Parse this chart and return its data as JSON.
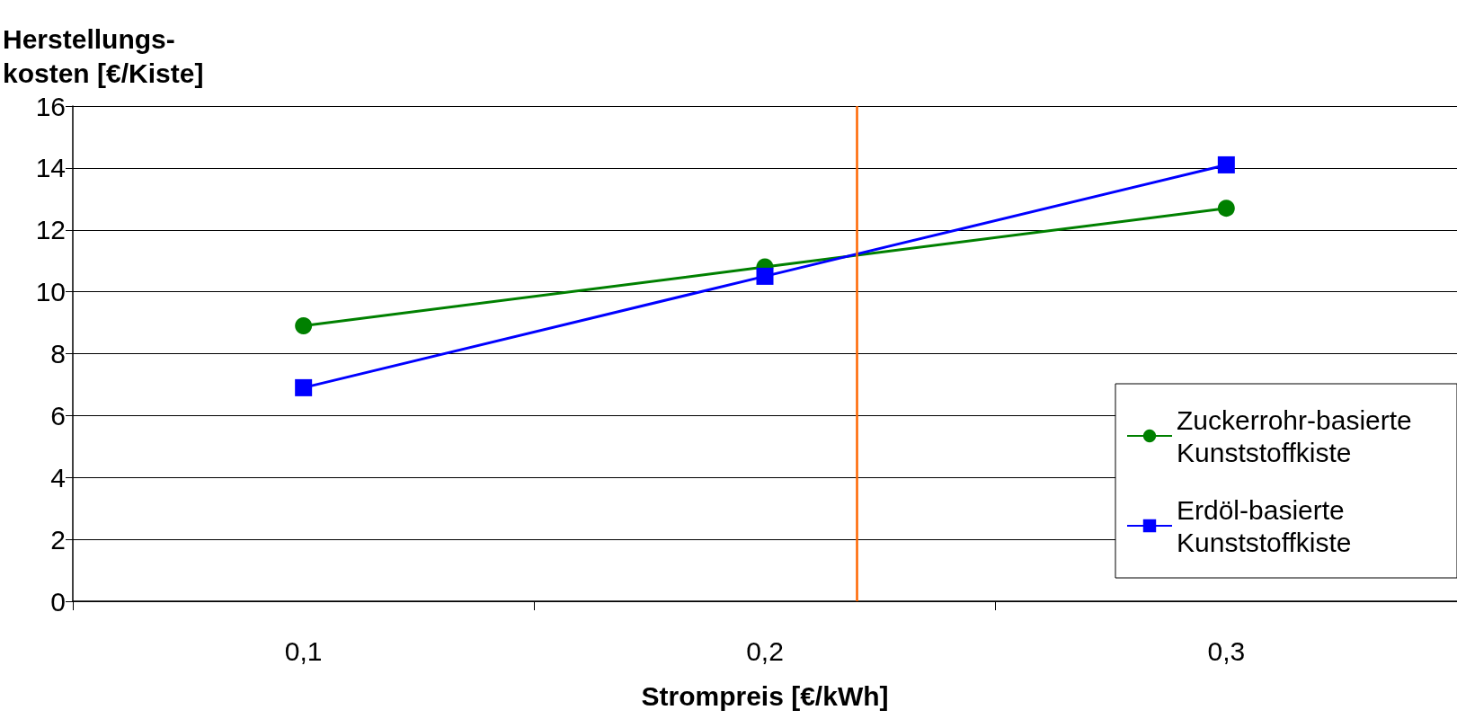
{
  "chart_data": {
    "type": "line",
    "xlabel": "Strompreis [€/kWh]",
    "ylabel": "Herstellungs-\nkosten [€/Kiste]",
    "x": [
      0.1,
      0.2,
      0.3
    ],
    "series": [
      {
        "name": "Zuckerrohr-basierte Kunststoffkiste",
        "color": "#008000",
        "marker": "circle",
        "values": [
          8.9,
          10.8,
          12.7
        ]
      },
      {
        "name": "Erdöl-basierte Kunststoffkiste",
        "color": "#0000ff",
        "marker": "square",
        "values": [
          6.9,
          10.5,
          14.1
        ]
      }
    ],
    "xlim": [
      0.05,
      0.35
    ],
    "xticks": [
      {
        "value": 0.05,
        "label": null
      },
      {
        "value": 0.1,
        "label": "0,1"
      },
      {
        "value": 0.15,
        "label": null
      },
      {
        "value": 0.2,
        "label": "0,2"
      },
      {
        "value": 0.25,
        "label": null
      },
      {
        "value": 0.3,
        "label": "0,3"
      },
      {
        "value": 0.35,
        "label": null
      }
    ],
    "ylim": [
      0,
      16
    ],
    "yticks": [
      0,
      2,
      4,
      6,
      8,
      10,
      12,
      14,
      16
    ],
    "ref_lines": [
      {
        "axis": "x",
        "value": 0.22,
        "color": "#ff6600"
      }
    ],
    "grid": "y",
    "legend": "bottom right",
    "line_style": "solid"
  }
}
